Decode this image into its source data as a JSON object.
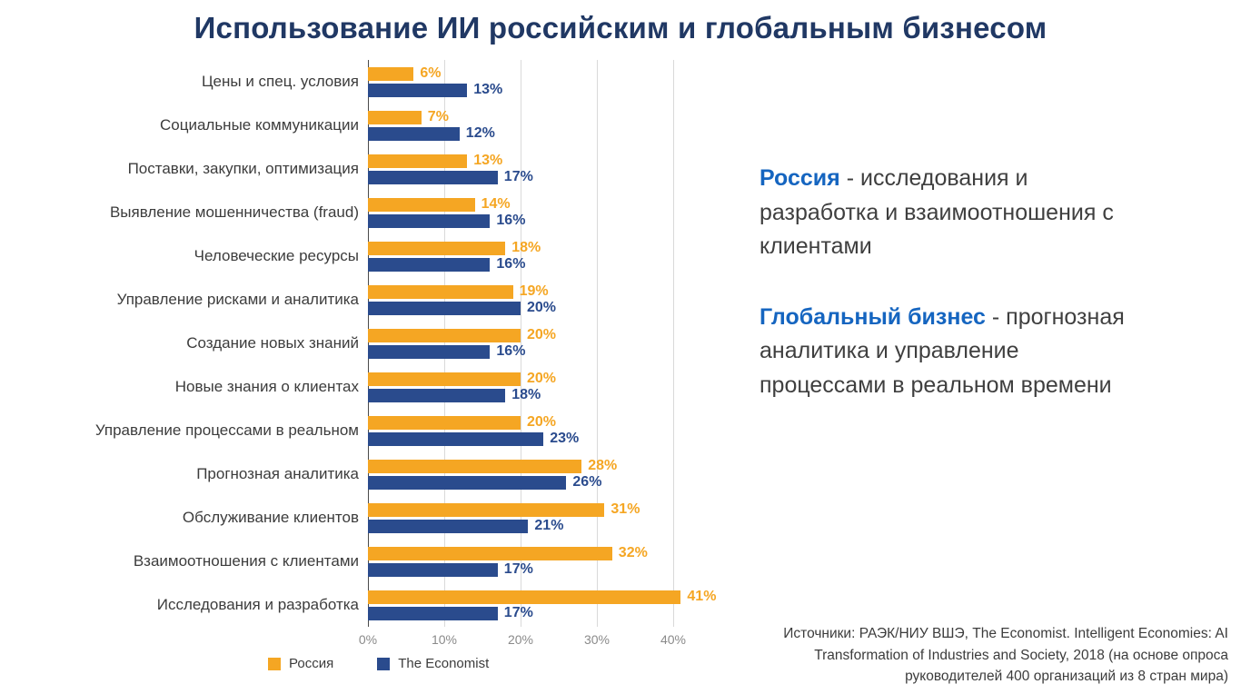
{
  "page": {
    "title": "Использование ИИ российским и глобальным бизнесом"
  },
  "chart_data": {
    "type": "bar",
    "orientation": "horizontal",
    "title": "Использование ИИ российским и глобальным бизнесом",
    "categories": [
      "Цены и спец. условия",
      "Социальные коммуникации",
      "Поставки, закупки, оптимизация",
      "Выявление мошенничества (fraud)",
      "Человеческие ресурсы",
      "Управление рисками и аналитика",
      "Создание новых знаний",
      "Новые знания о клиентах",
      "Управление процессами в реальном",
      "Прогнозная аналитика",
      "Обслуживание клиентов",
      "Взаимоотношения с клиентами",
      "Исследования и разработка"
    ],
    "series": [
      {
        "name": "Россия",
        "color": "#F5A623",
        "values": [
          6,
          7,
          13,
          14,
          18,
          19,
          20,
          20,
          20,
          28,
          31,
          32,
          41
        ]
      },
      {
        "name": "The Economist",
        "color": "#2A4B8D",
        "values": [
          13,
          12,
          17,
          16,
          16,
          20,
          16,
          18,
          23,
          26,
          21,
          17,
          17
        ]
      }
    ],
    "value_suffix": "%",
    "x_tick_values": [
      0,
      10,
      20,
      30,
      40
    ],
    "x_tick_labels": [
      "0%",
      "10%",
      "20%",
      "30%",
      "40%"
    ],
    "xlim": [
      0,
      45
    ],
    "grid": true,
    "legend_position": "bottom-left"
  },
  "annotations": {
    "russia": {
      "lead": "Россия",
      "text": " - исследования и разработка и взаимоотношения с клиентами"
    },
    "global": {
      "lead": "Глобальный бизнес",
      "text": " - прогнозная аналитика и управление процессами в реальном времени"
    }
  },
  "source_note": "Источники: РАЭК/НИУ ВШЭ, The Economist. Intelligent Economies: AI Transformation of Industries and Society, 2018 (на основе опроса руководителей 400 организаций из 8 стран мира)",
  "colors": {
    "russia_orange": "#F5A623",
    "economist_blue": "#2A4B8D",
    "title_navy": "#203864",
    "lead_blue": "#1565C0",
    "gridline_gray": "#d9d9d9"
  }
}
